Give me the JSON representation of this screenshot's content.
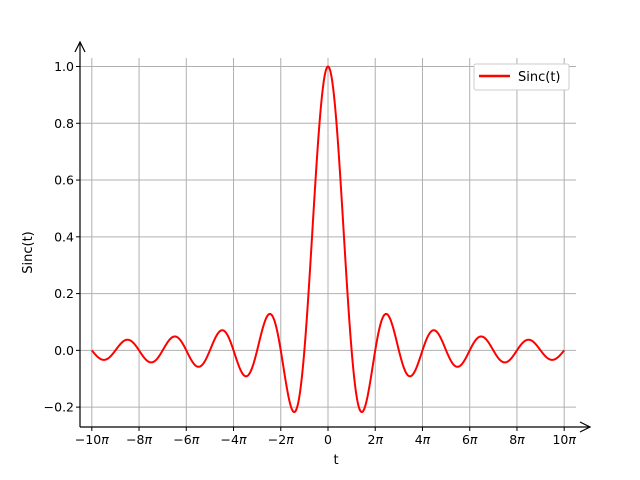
{
  "chart_data": {
    "type": "line",
    "xlabel": "t",
    "ylabel": "Sinc(t)",
    "xlim_pi": [
      -10.5,
      10.5
    ],
    "ylim": [
      -0.27,
      1.03
    ],
    "x_ticks": [
      {
        "value_pi": -10,
        "coef": "−10"
      },
      {
        "value_pi": -8,
        "coef": "−8"
      },
      {
        "value_pi": -6,
        "coef": "−6"
      },
      {
        "value_pi": -4,
        "coef": "−4"
      },
      {
        "value_pi": -2,
        "coef": "−2"
      },
      {
        "value_pi": 0,
        "coef": "0"
      },
      {
        "value_pi": 2,
        "coef": "2"
      },
      {
        "value_pi": 4,
        "coef": "4"
      },
      {
        "value_pi": 6,
        "coef": "6"
      },
      {
        "value_pi": 8,
        "coef": "8"
      },
      {
        "value_pi": 10,
        "coef": "10"
      }
    ],
    "pi_symbol": "π",
    "y_ticks": [
      {
        "value": -0.2,
        "label": "−0.2"
      },
      {
        "value": 0.0,
        "label": "0.0"
      },
      {
        "value": 0.2,
        "label": "0.2"
      },
      {
        "value": 0.4,
        "label": "0.4"
      },
      {
        "value": 0.6,
        "label": "0.6"
      },
      {
        "value": 0.8,
        "label": "0.8"
      },
      {
        "value": 1.0,
        "label": "1.0"
      }
    ],
    "grid": true,
    "legend_position": "top-right",
    "series": [
      {
        "name": "Sinc(t)",
        "color": "#ff0000",
        "function": "sin(t)/t",
        "x_range_pi": [
          -10,
          10
        ]
      }
    ]
  }
}
